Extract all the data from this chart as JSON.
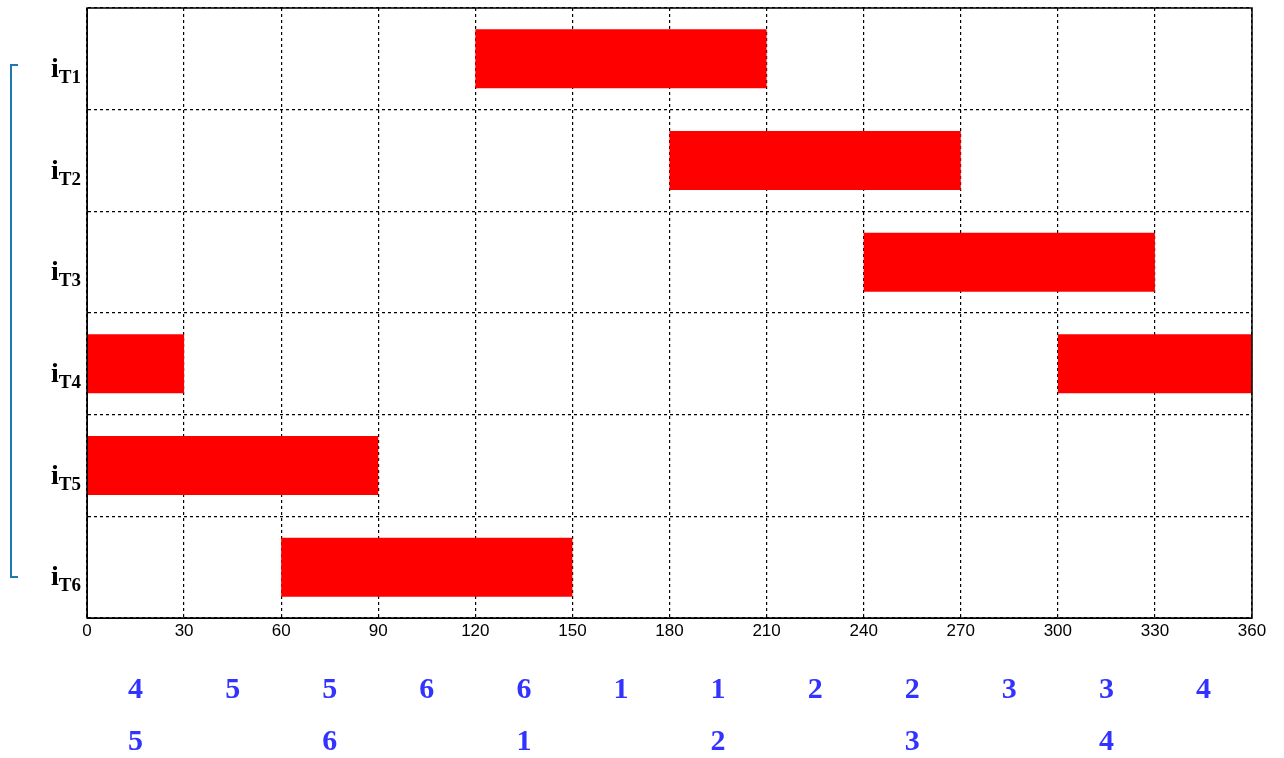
{
  "chart_data": {
    "type": "bar",
    "orientation": "horizontal",
    "categories": [
      "i$_{T1}$",
      "i$_{T2}$",
      "i$_{T3}$",
      "i$_{T4}$",
      "i$_{T5}$",
      "i$_{T6}$"
    ],
    "series": [
      {
        "color": "#ff0000",
        "base": [
          120,
          180,
          240,
          300,
          0,
          60
        ],
        "values": [
          90,
          90,
          90,
          60,
          90,
          90
        ]
      },
      {
        "color": "#ff0000",
        "base": [
          null,
          null,
          null,
          0,
          null,
          null
        ],
        "values": [
          null,
          null,
          null,
          30,
          null,
          null
        ]
      }
    ],
    "xlim": [
      0,
      360
    ],
    "xticks": [
      0,
      30,
      60,
      90,
      120,
      150,
      180,
      210,
      240,
      270,
      300,
      330,
      360
    ],
    "grid": true,
    "legend": false,
    "annotations": [
      "4\n5",
      "5",
      "5\n6",
      "6",
      "6\n1",
      "1",
      "1\n2",
      "2",
      "2\n3",
      "3",
      "3\n4",
      "4"
    ]
  }
}
